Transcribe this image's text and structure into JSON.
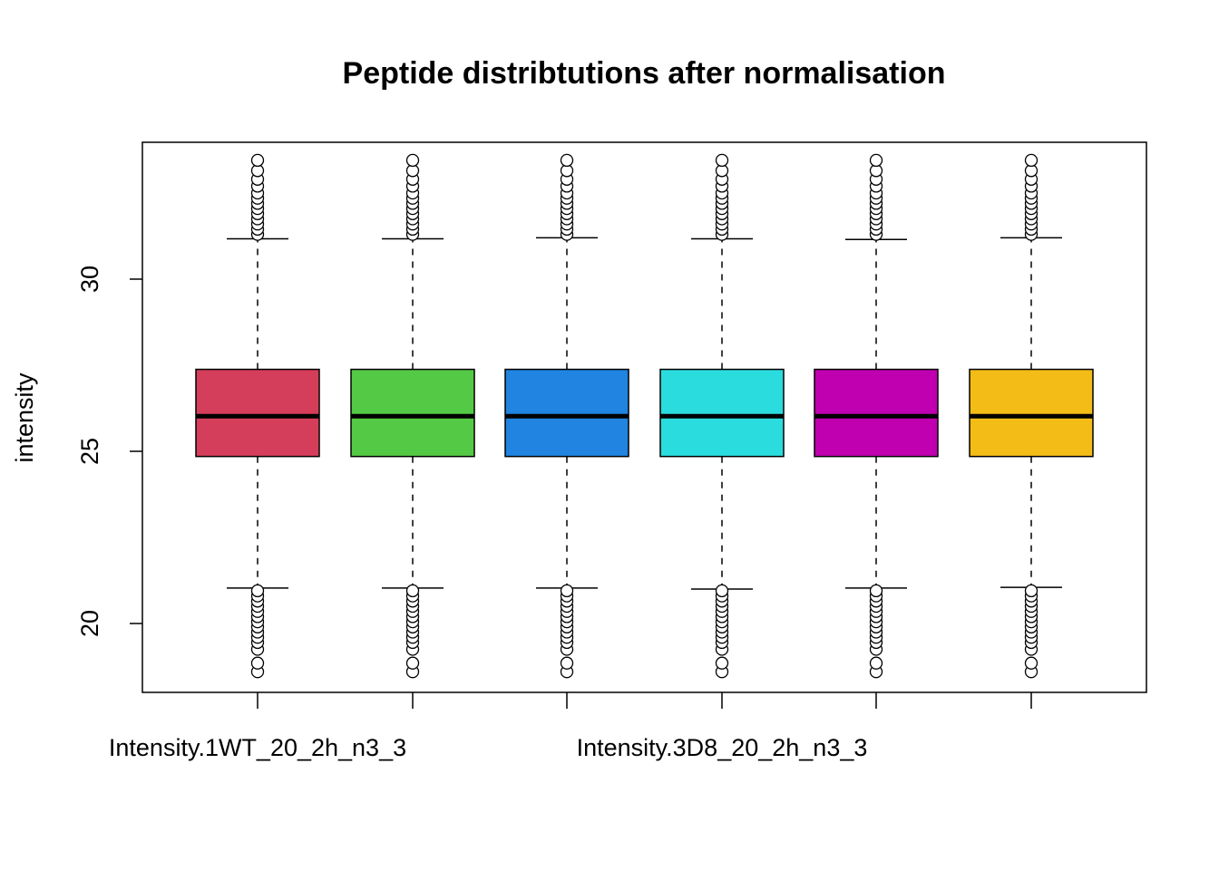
{
  "chart_data": {
    "type": "boxplot",
    "title": "Peptide distribtutions after normalisation",
    "ylabel": "intensity",
    "xlabel": "",
    "ylim": [
      18.0,
      34.0
    ],
    "yticks": [
      20,
      25,
      30
    ],
    "ytick_labels": [
      "20",
      "25",
      "30"
    ],
    "x_tick_labels_shown": [
      "Intensity.1WT_20_2h_n3_3",
      "",
      "",
      "Intensity.3D8_20_2h_n3_3",
      "",
      ""
    ],
    "grid": false,
    "legend": "none",
    "series": [
      {
        "color": "#D53E5A",
        "q1": 24.85,
        "median": 26.02,
        "q3": 27.38,
        "whisker_low": 21.03,
        "whisker_high": 31.17,
        "outliers_high": [
          31.3,
          31.45,
          31.6,
          31.75,
          31.9,
          32.05,
          32.2,
          32.35,
          32.5,
          32.7,
          32.9,
          33.15,
          33.45
        ],
        "outliers_low": [
          18.6,
          18.85,
          19.25,
          19.45,
          19.6,
          19.75,
          19.9,
          20.05,
          20.2,
          20.35,
          20.5,
          20.65,
          20.8,
          20.95
        ]
      },
      {
        "color": "#54C945",
        "q1": 24.85,
        "median": 26.02,
        "q3": 27.38,
        "whisker_low": 21.03,
        "whisker_high": 31.17,
        "outliers_high": [
          31.3,
          31.45,
          31.6,
          31.75,
          31.9,
          32.05,
          32.2,
          32.35,
          32.5,
          32.7,
          32.9,
          33.15,
          33.45
        ],
        "outliers_low": [
          18.6,
          18.85,
          19.25,
          19.45,
          19.6,
          19.75,
          19.9,
          20.05,
          20.2,
          20.35,
          20.5,
          20.65,
          20.8,
          20.95
        ]
      },
      {
        "color": "#2084E0",
        "q1": 24.85,
        "median": 26.02,
        "q3": 27.38,
        "whisker_low": 21.03,
        "whisker_high": 31.2,
        "outliers_high": [
          31.3,
          31.45,
          31.6,
          31.75,
          31.9,
          32.05,
          32.2,
          32.35,
          32.5,
          32.7,
          32.9,
          33.15,
          33.45
        ],
        "outliers_low": [
          18.6,
          18.85,
          19.25,
          19.45,
          19.6,
          19.75,
          19.9,
          20.05,
          20.2,
          20.35,
          20.5,
          20.65,
          20.8,
          20.95
        ]
      },
      {
        "color": "#2BDCDE",
        "q1": 24.85,
        "median": 26.02,
        "q3": 27.38,
        "whisker_low": 21.0,
        "whisker_high": 31.17,
        "outliers_high": [
          31.3,
          31.45,
          31.6,
          31.75,
          31.9,
          32.05,
          32.2,
          32.35,
          32.5,
          32.7,
          32.9,
          33.15,
          33.45
        ],
        "outliers_low": [
          18.6,
          18.85,
          19.25,
          19.45,
          19.6,
          19.75,
          19.9,
          20.05,
          20.2,
          20.35,
          20.5,
          20.65,
          20.8,
          20.95
        ]
      },
      {
        "color": "#C000B0",
        "q1": 24.85,
        "median": 26.02,
        "q3": 27.38,
        "whisker_low": 21.03,
        "whisker_high": 31.15,
        "outliers_high": [
          31.3,
          31.45,
          31.6,
          31.75,
          31.9,
          32.05,
          32.2,
          32.35,
          32.5,
          32.7,
          32.9,
          33.15,
          33.45
        ],
        "outliers_low": [
          18.6,
          18.85,
          19.25,
          19.45,
          19.6,
          19.75,
          19.9,
          20.05,
          20.2,
          20.35,
          20.5,
          20.65,
          20.8,
          20.95
        ]
      },
      {
        "color": "#F3BC16",
        "q1": 24.85,
        "median": 26.02,
        "q3": 27.38,
        "whisker_low": 21.05,
        "whisker_high": 31.2,
        "outliers_high": [
          31.3,
          31.45,
          31.6,
          31.75,
          31.9,
          32.05,
          32.2,
          32.35,
          32.5,
          32.7,
          32.9,
          33.15,
          33.45
        ],
        "outliers_low": [
          18.6,
          18.85,
          19.25,
          19.45,
          19.6,
          19.75,
          19.9,
          20.05,
          20.2,
          20.35,
          20.5,
          20.65,
          20.8,
          20.95
        ]
      }
    ]
  }
}
